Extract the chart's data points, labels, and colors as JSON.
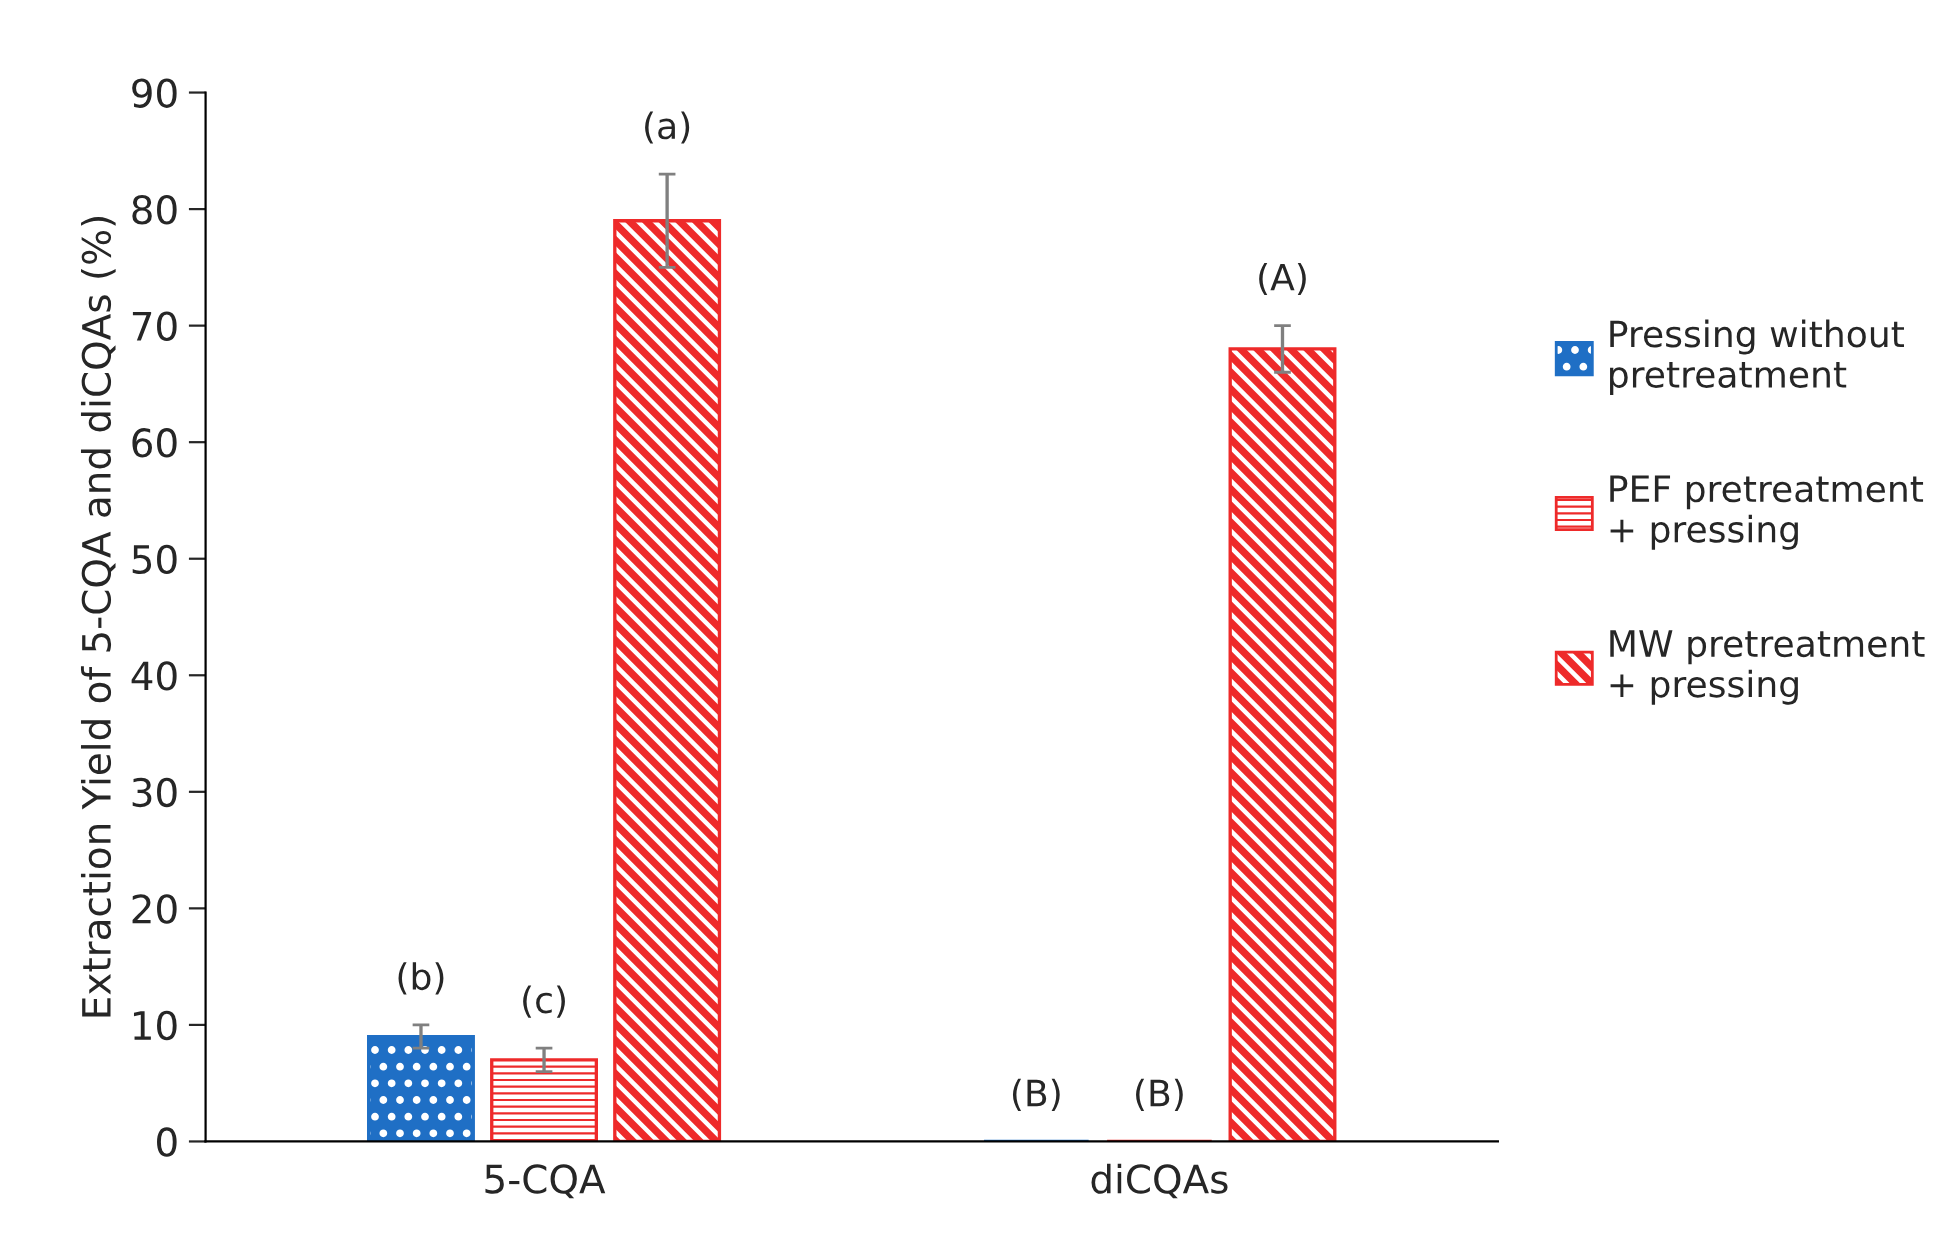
{
  "chart_data": {
    "type": "bar",
    "ylabel": "Extraction Yield of 5-CQA and diCQAs (%)",
    "categories": [
      "5-CQA",
      "diCQAs"
    ],
    "series": [
      {
        "name": "Pressing without pretreatment",
        "color": "#1f6fc5",
        "values": [
          9,
          0
        ],
        "errors": [
          1,
          null
        ],
        "value_labels": [
          "(b)",
          "(B)"
        ]
      },
      {
        "name": "PEF pretreatment + pressing",
        "color": "#ee2a2a",
        "values": [
          7,
          0
        ],
        "errors": [
          1,
          null
        ],
        "value_labels": [
          "(c)",
          "(B)"
        ]
      },
      {
        "name": "MW pretreatment + pressing",
        "color": "#ee2a2a",
        "values": [
          79,
          68
        ],
        "errors": [
          4,
          2
        ],
        "value_labels": [
          "(a)",
          "(A)"
        ]
      }
    ],
    "ylim": [
      0,
      90
    ],
    "yticks": [
      0,
      10,
      20,
      30,
      40,
      50,
      60,
      70,
      80,
      90
    ],
    "legend": "right",
    "grid": false
  }
}
